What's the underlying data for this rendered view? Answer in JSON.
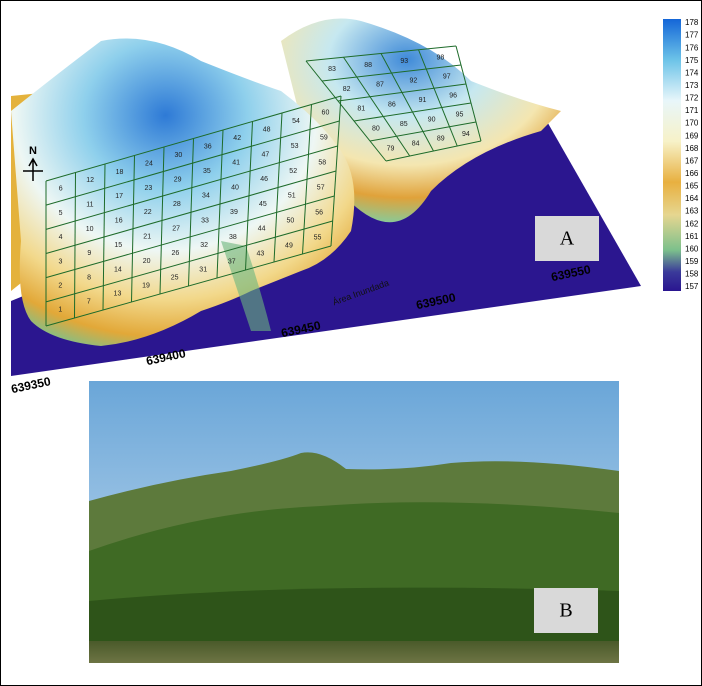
{
  "panel_a": {
    "label": "A",
    "north": "N",
    "flooded_area": "Área Inundada",
    "easting_labels": [
      639350,
      639400,
      639450,
      639500,
      639550
    ],
    "color_scale": [
      178,
      177,
      176,
      175,
      174,
      173,
      172,
      171,
      170,
      169,
      168,
      167,
      166,
      165,
      164,
      163,
      162,
      161,
      160,
      159,
      158,
      157
    ],
    "front_plots": [
      1,
      2,
      3,
      4,
      5,
      6,
      7,
      8,
      9,
      10,
      11,
      12,
      13,
      14,
      15,
      16,
      17,
      18,
      19,
      20,
      21,
      22,
      23,
      24,
      25,
      26,
      27,
      28,
      29,
      30,
      31,
      32,
      33,
      34,
      35,
      36,
      37,
      38,
      39,
      40,
      41,
      42,
      43,
      44,
      45,
      46,
      47,
      48,
      49,
      50,
      51,
      52,
      53,
      54,
      55,
      56,
      57,
      58,
      59,
      60
    ],
    "back_plots": [
      79,
      80,
      81,
      82,
      83,
      84,
      85,
      86,
      87,
      88,
      89,
      90,
      91,
      92,
      93,
      94,
      95,
      96,
      97,
      98
    ]
  },
  "panel_b": {
    "label": "B"
  }
}
